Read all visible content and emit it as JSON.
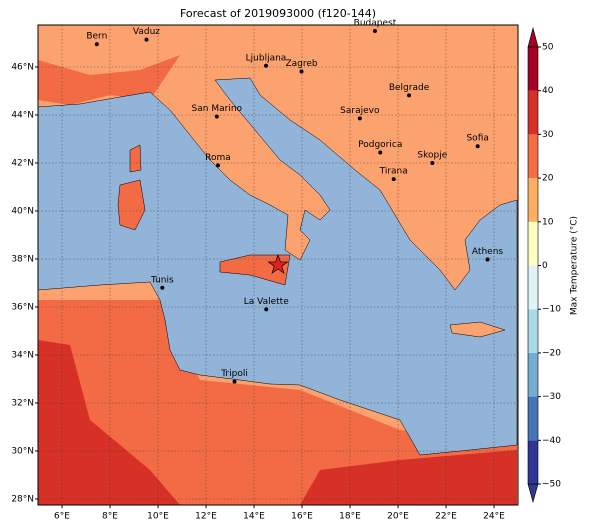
{
  "title": "Forecast of 2019093000 (f120-144)",
  "map": {
    "xlim": [
      5,
      25
    ],
    "ylim": [
      27.75,
      47.75
    ],
    "xticks": [
      {
        "value": 6,
        "label": "6°E"
      },
      {
        "value": 8,
        "label": "8°E"
      },
      {
        "value": 10,
        "label": "10°E"
      },
      {
        "value": 12,
        "label": "12°E"
      },
      {
        "value": 14,
        "label": "14°E"
      },
      {
        "value": 16,
        "label": "16°E"
      },
      {
        "value": 18,
        "label": "18°E"
      },
      {
        "value": 20,
        "label": "20°E"
      },
      {
        "value": 22,
        "label": "22°E"
      },
      {
        "value": 24,
        "label": "24°E"
      }
    ],
    "yticks": [
      {
        "value": 28,
        "label": "28°N"
      },
      {
        "value": 30,
        "label": "30°N"
      },
      {
        "value": 32,
        "label": "32°N"
      },
      {
        "value": 34,
        "label": "34°N"
      },
      {
        "value": 36,
        "label": "36°N"
      },
      {
        "value": 38,
        "label": "38°N"
      },
      {
        "value": 40,
        "label": "40°N"
      },
      {
        "value": 42,
        "label": "42°N"
      },
      {
        "value": 44,
        "label": "44°N"
      },
      {
        "value": 46,
        "label": "46°N"
      }
    ],
    "grid": true
  },
  "cities": [
    {
      "name": "Bern",
      "lon": 7.45,
      "lat": 46.95
    },
    {
      "name": "Vaduz",
      "lon": 9.52,
      "lat": 47.14
    },
    {
      "name": "Budapest",
      "lon": 19.04,
      "lat": 47.5
    },
    {
      "name": "Ljubljana",
      "lon": 14.5,
      "lat": 46.05
    },
    {
      "name": "Zagreb",
      "lon": 15.98,
      "lat": 45.81
    },
    {
      "name": "Belgrade",
      "lon": 20.46,
      "lat": 44.82
    },
    {
      "name": "Sarajevo",
      "lon": 18.41,
      "lat": 43.86
    },
    {
      "name": "San Marino",
      "lon": 12.45,
      "lat": 43.94
    },
    {
      "name": "Sofia",
      "lon": 23.32,
      "lat": 42.7
    },
    {
      "name": "Podgorica",
      "lon": 19.26,
      "lat": 42.44
    },
    {
      "name": "Skopje",
      "lon": 21.43,
      "lat": 42.0
    },
    {
      "name": "Roma",
      "lon": 12.5,
      "lat": 41.9
    },
    {
      "name": "Tirana",
      "lon": 19.82,
      "lat": 41.33
    },
    {
      "name": "Athens",
      "lon": 23.73,
      "lat": 37.98
    },
    {
      "name": "Tunis",
      "lon": 10.18,
      "lat": 36.8
    },
    {
      "name": "La Valette",
      "lon": 14.51,
      "lat": 35.9
    },
    {
      "name": "Tripoli",
      "lon": 13.19,
      "lat": 32.89
    }
  ],
  "star": {
    "lon": 15.0,
    "lat": 37.75,
    "color": "#e02020"
  },
  "colorbar": {
    "label": "Max Temperature (°C)",
    "levels": [
      -50,
      -40,
      -30,
      -20,
      -10,
      0,
      10,
      20,
      30,
      40,
      50
    ],
    "colors": [
      "#313695",
      "#4575b4",
      "#74add1",
      "#abd9e9",
      "#e0f3f8",
      "#ffffbf",
      "#fdae61",
      "#f46d43",
      "#d73027",
      "#a50026"
    ],
    "ticks": [
      {
        "value": -50,
        "label": "−50"
      },
      {
        "value": -40,
        "label": "−40"
      },
      {
        "value": -30,
        "label": "−30"
      },
      {
        "value": -20,
        "label": "−20"
      },
      {
        "value": -10,
        "label": "−10"
      },
      0,
      10,
      20,
      30,
      40,
      50
    ]
  }
}
